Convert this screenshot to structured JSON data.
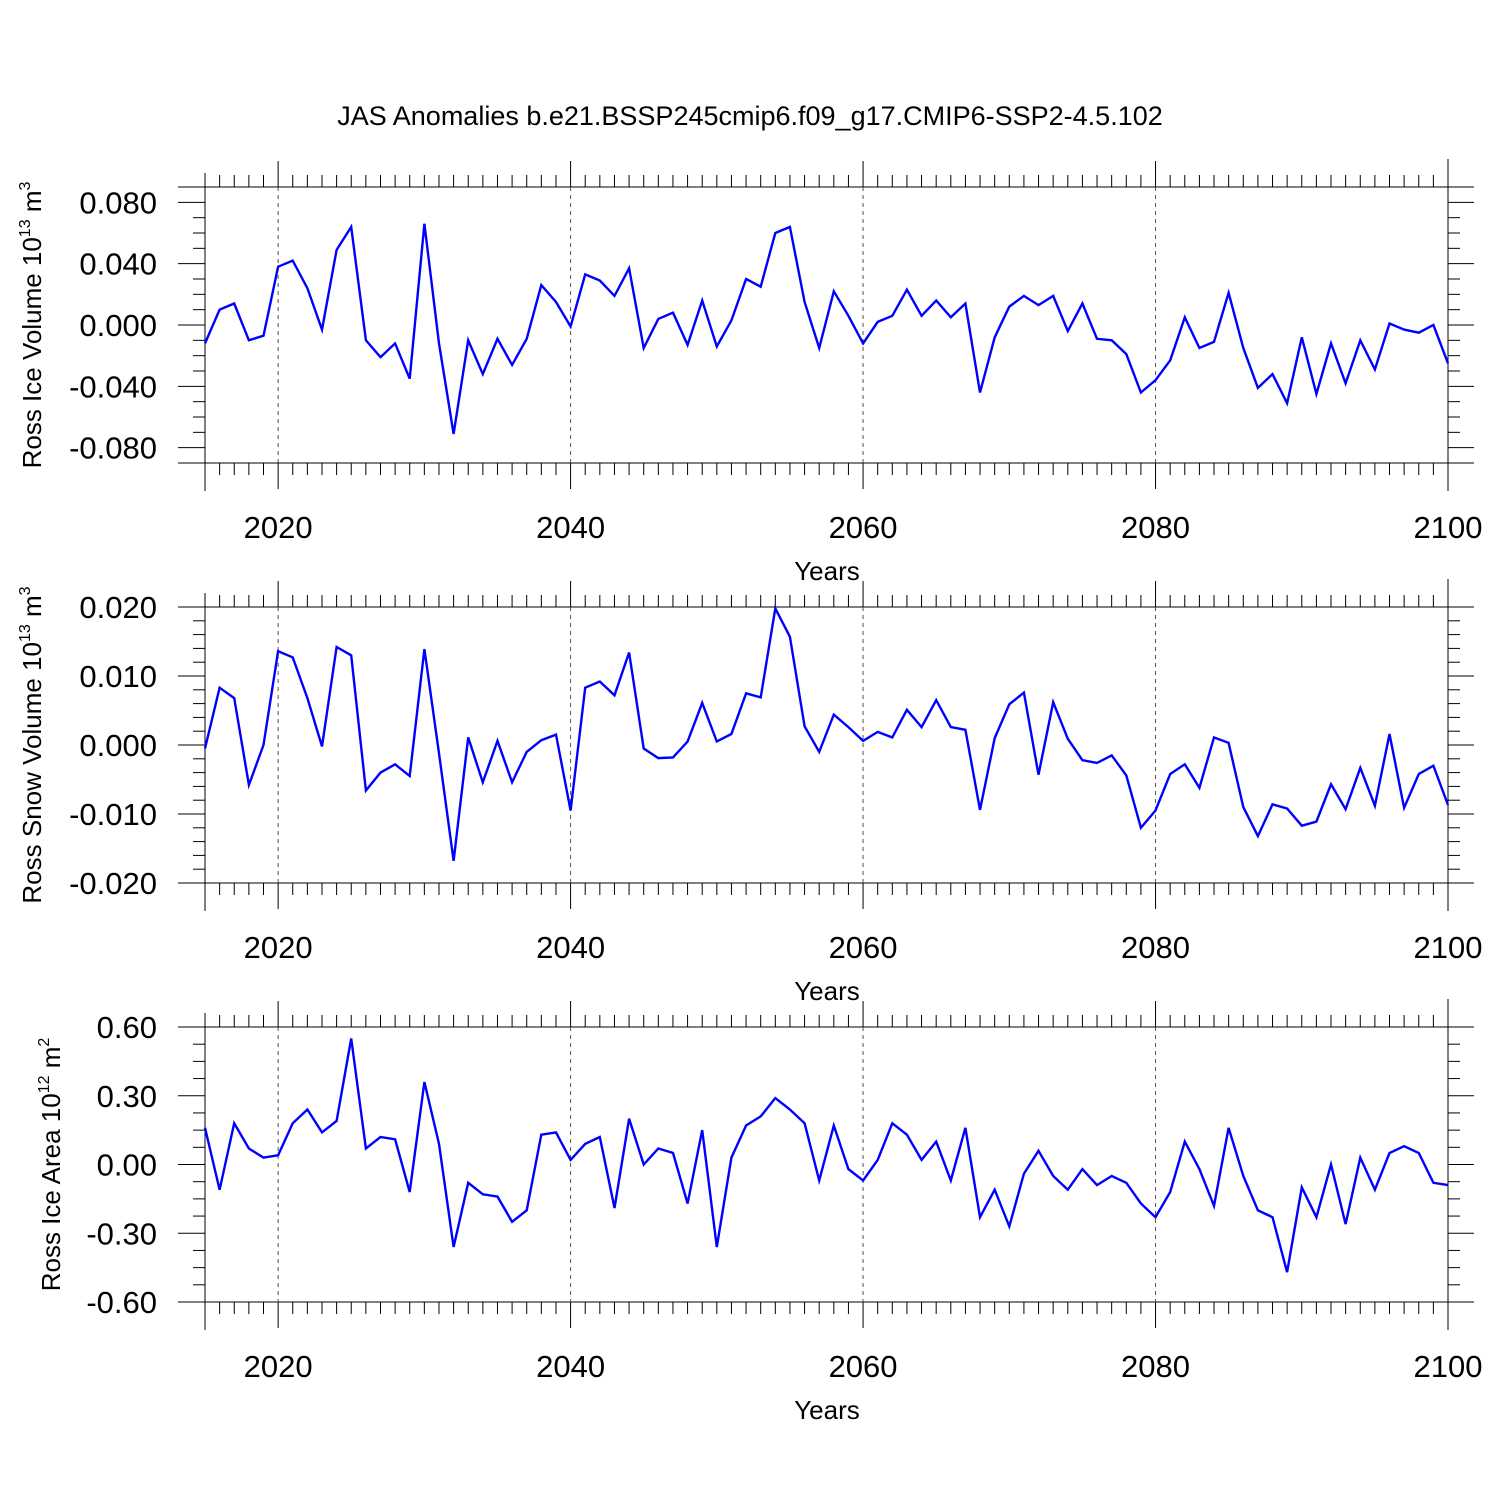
{
  "title": "JAS Anomalies b.e21.BSSP245cmip6.f09_g17.CMIP6-SSP2-4.5.102",
  "colors": {
    "line": "#0000ff",
    "axis": "#000000",
    "grid": "#555555"
  },
  "chart_data": [
    {
      "type": "line",
      "name": "panel-ice-volume",
      "xlabel": "Years",
      "ylabel": {
        "text": "Ross Ice Volume 10",
        "exponent": "13",
        "unit": " m",
        "unit_exponent": "3"
      },
      "xlim": [
        2015,
        2100
      ],
      "ylim": [
        -0.09,
        0.09
      ],
      "x_ticks": [
        2020,
        2040,
        2060,
        2080,
        2100
      ],
      "x_tick_labels": [
        "2020",
        "2040",
        "2060",
        "2080",
        "2100"
      ],
      "y_ticks": [
        0.08,
        0.04,
        0.0,
        -0.04,
        -0.08
      ],
      "y_tick_labels": [
        "0.080",
        "0.040",
        "0.000",
        "-0.040",
        "-0.080"
      ],
      "y_minor_step": 0.01,
      "x_minor_step": 1,
      "vertical_grid": "dashed at major x ticks",
      "x": [
        2015,
        2016,
        2017,
        2018,
        2019,
        2020,
        2021,
        2022,
        2023,
        2024,
        2025,
        2026,
        2027,
        2028,
        2029,
        2030,
        2031,
        2032,
        2033,
        2034,
        2035,
        2036,
        2037,
        2038,
        2039,
        2040,
        2041,
        2042,
        2043,
        2044,
        2045,
        2046,
        2047,
        2048,
        2049,
        2050,
        2051,
        2052,
        2053,
        2054,
        2055,
        2056,
        2057,
        2058,
        2059,
        2060,
        2061,
        2062,
        2063,
        2064,
        2065,
        2066,
        2067,
        2068,
        2069,
        2070,
        2071,
        2072,
        2073,
        2074,
        2075,
        2076,
        2077,
        2078,
        2079,
        2080,
        2081,
        2082,
        2083,
        2084,
        2085,
        2086,
        2087,
        2088,
        2089,
        2090,
        2091,
        2092,
        2093,
        2094,
        2095,
        2096,
        2097,
        2098,
        2099,
        2100
      ],
      "values": [
        -0.012,
        0.01,
        0.014,
        -0.01,
        -0.007,
        0.038,
        0.042,
        0.024,
        -0.003,
        0.049,
        0.064,
        -0.01,
        -0.021,
        -0.012,
        -0.035,
        0.066,
        -0.012,
        -0.071,
        -0.01,
        -0.032,
        -0.009,
        -0.026,
        -0.009,
        0.026,
        0.015,
        -0.001,
        0.033,
        0.029,
        0.019,
        0.037,
        -0.015,
        0.004,
        0.008,
        -0.013,
        0.016,
        -0.014,
        0.003,
        0.03,
        0.025,
        0.06,
        0.064,
        0.015,
        -0.015,
        0.022,
        0.006,
        -0.012,
        0.002,
        0.006,
        0.023,
        0.006,
        0.016,
        0.005,
        0.014,
        -0.044,
        -0.008,
        0.012,
        0.019,
        0.013,
        0.019,
        -0.004,
        0.014,
        -0.009,
        -0.01,
        -0.019,
        -0.044,
        -0.036,
        -0.023,
        0.005,
        -0.015,
        -0.011,
        0.021,
        -0.015,
        -0.041,
        -0.032,
        -0.051,
        -0.008,
        -0.045,
        -0.012,
        -0.038,
        -0.01,
        -0.029,
        0.001,
        -0.003,
        -0.005,
        0.0,
        -0.025
      ]
    },
    {
      "type": "line",
      "name": "panel-snow-volume",
      "xlabel": "Years",
      "ylabel": {
        "text": "Ross Snow Volume 10",
        "exponent": "13",
        "unit": " m",
        "unit_exponent": "3"
      },
      "xlim": [
        2015,
        2100
      ],
      "ylim": [
        -0.02,
        0.02
      ],
      "x_ticks": [
        2020,
        2040,
        2060,
        2080,
        2100
      ],
      "x_tick_labels": [
        "2020",
        "2040",
        "2060",
        "2080",
        "2100"
      ],
      "y_ticks": [
        0.02,
        0.01,
        0.0,
        -0.01,
        -0.02
      ],
      "y_tick_labels": [
        "0.020",
        "0.010",
        "0.000",
        "-0.010",
        "-0.020"
      ],
      "y_minor_step": 0.002,
      "x_minor_step": 1,
      "vertical_grid": "dashed at major x ticks",
      "x": [
        2015,
        2016,
        2017,
        2018,
        2019,
        2020,
        2021,
        2022,
        2023,
        2024,
        2025,
        2026,
        2027,
        2028,
        2029,
        2030,
        2031,
        2032,
        2033,
        2034,
        2035,
        2036,
        2037,
        2038,
        2039,
        2040,
        2041,
        2042,
        2043,
        2044,
        2045,
        2046,
        2047,
        2048,
        2049,
        2050,
        2051,
        2052,
        2053,
        2054,
        2055,
        2056,
        2057,
        2058,
        2059,
        2060,
        2061,
        2062,
        2063,
        2064,
        2065,
        2066,
        2067,
        2068,
        2069,
        2070,
        2071,
        2072,
        2073,
        2074,
        2075,
        2076,
        2077,
        2078,
        2079,
        2080,
        2081,
        2082,
        2083,
        2084,
        2085,
        2086,
        2087,
        2088,
        2089,
        2090,
        2091,
        2092,
        2093,
        2094,
        2095,
        2096,
        2097,
        2098,
        2099,
        2100
      ],
      "values": [
        -0.0005,
        0.0083,
        0.0068,
        -0.0058,
        0.0,
        0.0136,
        0.0127,
        0.0068,
        -0.0002,
        0.0142,
        0.013,
        -0.0066,
        -0.004,
        -0.0028,
        -0.0045,
        0.0139,
        -0.0012,
        -0.0168,
        0.0011,
        -0.0054,
        0.0006,
        -0.0054,
        -0.001,
        0.0007,
        0.0015,
        -0.0095,
        0.0083,
        0.0092,
        0.0072,
        0.0134,
        -0.0005,
        -0.0019,
        -0.0018,
        0.0005,
        0.0061,
        0.0005,
        0.0016,
        0.0075,
        0.0069,
        0.0198,
        0.0157,
        0.0027,
        -0.001,
        0.0044,
        0.0026,
        0.0006,
        0.0019,
        0.0011,
        0.0051,
        0.0026,
        0.0065,
        0.0026,
        0.0022,
        -0.0094,
        0.001,
        0.0059,
        0.0076,
        -0.0043,
        0.0062,
        0.0009,
        -0.0022,
        -0.0026,
        -0.0015,
        -0.0044,
        -0.012,
        -0.0095,
        -0.0042,
        -0.0028,
        -0.0062,
        0.0011,
        0.0003,
        -0.009,
        -0.0132,
        -0.0086,
        -0.0092,
        -0.0117,
        -0.0111,
        -0.0057,
        -0.0093,
        -0.0033,
        -0.0088,
        0.0016,
        -0.0091,
        -0.0042,
        -0.003,
        -0.0087
      ]
    },
    {
      "type": "line",
      "name": "panel-ice-area",
      "xlabel": "Years",
      "ylabel": {
        "text": "Ross Ice Area 10",
        "exponent": "12",
        "unit": " m",
        "unit_exponent": "2"
      },
      "xlim": [
        2015,
        2100
      ],
      "ylim": [
        -0.6,
        0.6
      ],
      "x_ticks": [
        2020,
        2040,
        2060,
        2080,
        2100
      ],
      "x_tick_labels": [
        "2020",
        "2040",
        "2060",
        "2080",
        "2100"
      ],
      "y_ticks": [
        0.6,
        0.3,
        0.0,
        -0.3,
        -0.6
      ],
      "y_tick_labels": [
        "0.60",
        "0.30",
        "0.00",
        "-0.30",
        "-0.60"
      ],
      "y_minor_step": 0.075,
      "x_minor_step": 1,
      "vertical_grid": "dashed at major x ticks",
      "x": [
        2015,
        2016,
        2017,
        2018,
        2019,
        2020,
        2021,
        2022,
        2023,
        2024,
        2025,
        2026,
        2027,
        2028,
        2029,
        2030,
        2031,
        2032,
        2033,
        2034,
        2035,
        2036,
        2037,
        2038,
        2039,
        2040,
        2041,
        2042,
        2043,
        2044,
        2045,
        2046,
        2047,
        2048,
        2049,
        2050,
        2051,
        2052,
        2053,
        2054,
        2055,
        2056,
        2057,
        2058,
        2059,
        2060,
        2061,
        2062,
        2063,
        2064,
        2065,
        2066,
        2067,
        2068,
        2069,
        2070,
        2071,
        2072,
        2073,
        2074,
        2075,
        2076,
        2077,
        2078,
        2079,
        2080,
        2081,
        2082,
        2083,
        2084,
        2085,
        2086,
        2087,
        2088,
        2089,
        2090,
        2091,
        2092,
        2093,
        2094,
        2095,
        2096,
        2097,
        2098,
        2099,
        2100
      ],
      "values": [
        0.16,
        -0.11,
        0.18,
        0.07,
        0.03,
        0.04,
        0.18,
        0.24,
        0.14,
        0.19,
        0.55,
        0.07,
        0.12,
        0.11,
        -0.12,
        0.36,
        0.09,
        -0.36,
        -0.08,
        -0.13,
        -0.14,
        -0.25,
        -0.2,
        0.13,
        0.14,
        0.02,
        0.09,
        0.12,
        -0.19,
        0.2,
        0.0,
        0.07,
        0.05,
        -0.17,
        0.15,
        -0.36,
        0.03,
        0.17,
        0.21,
        0.29,
        0.24,
        0.18,
        -0.07,
        0.17,
        -0.02,
        -0.07,
        0.02,
        0.18,
        0.13,
        0.02,
        0.1,
        -0.07,
        0.16,
        -0.23,
        -0.11,
        -0.27,
        -0.04,
        0.06,
        -0.05,
        -0.11,
        -0.02,
        -0.09,
        -0.05,
        -0.08,
        -0.17,
        -0.23,
        -0.12,
        0.1,
        -0.02,
        -0.18,
        0.16,
        -0.05,
        -0.2,
        -0.23,
        -0.47,
        -0.1,
        -0.23,
        0.0,
        -0.26,
        0.03,
        -0.11,
        0.05,
        0.08,
        0.05,
        -0.08,
        -0.09
      ]
    }
  ]
}
